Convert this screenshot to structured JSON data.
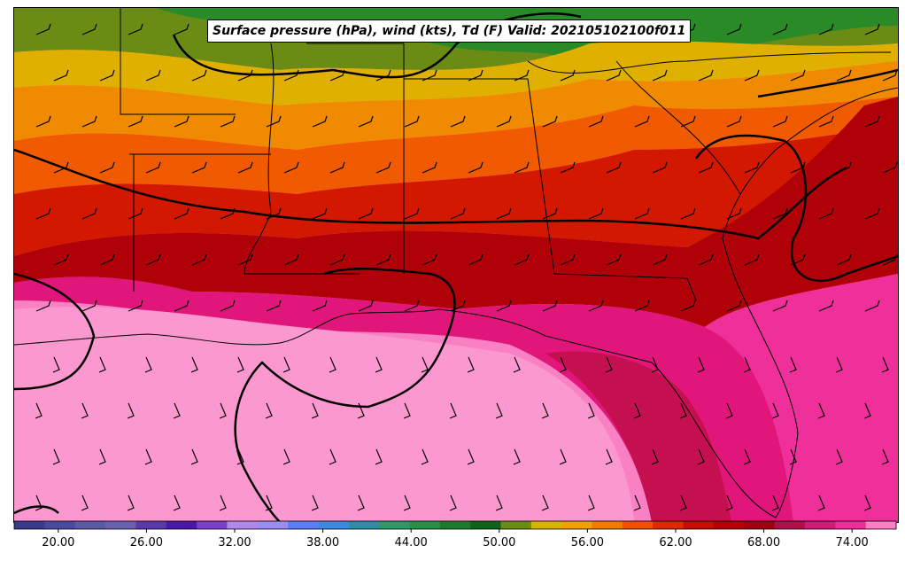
{
  "title": "Surface pressure (hPa), wind (kts), Td (F) Valid: 202105102100f011",
  "colorbar": {
    "ticks": [
      "20.00",
      "26.00",
      "32.00",
      "38.00",
      "44.00",
      "50.00",
      "56.00",
      "62.00",
      "68.00",
      "74.00"
    ],
    "colors": [
      "#3a3a8c",
      "#4a4aa0",
      "#5a5aa6",
      "#6a60b0",
      "#5a3aa8",
      "#4a18a8",
      "#7a3ec8",
      "#b088e8",
      "#9a8cf0",
      "#5a7ef4",
      "#3f88e0",
      "#2f8ca8",
      "#2e9a6a",
      "#259048",
      "#1c7a2c",
      "#0e6418",
      "#6a8c14",
      "#d8b400",
      "#f0a000",
      "#f07c00",
      "#f05000",
      "#e02800",
      "#c80c00",
      "#b80000",
      "#a00010",
      "#b0104a",
      "#d01c78",
      "#ee2c98",
      "#fa80c4"
    ],
    "min": 17,
    "max": 77
  },
  "map_layers": {
    "dewpoint_field": "Td (F)",
    "pressure": "isobars",
    "wind": "wind barbs (kts)",
    "region": "Southeastern United States and Gulf of Mexico"
  }
}
